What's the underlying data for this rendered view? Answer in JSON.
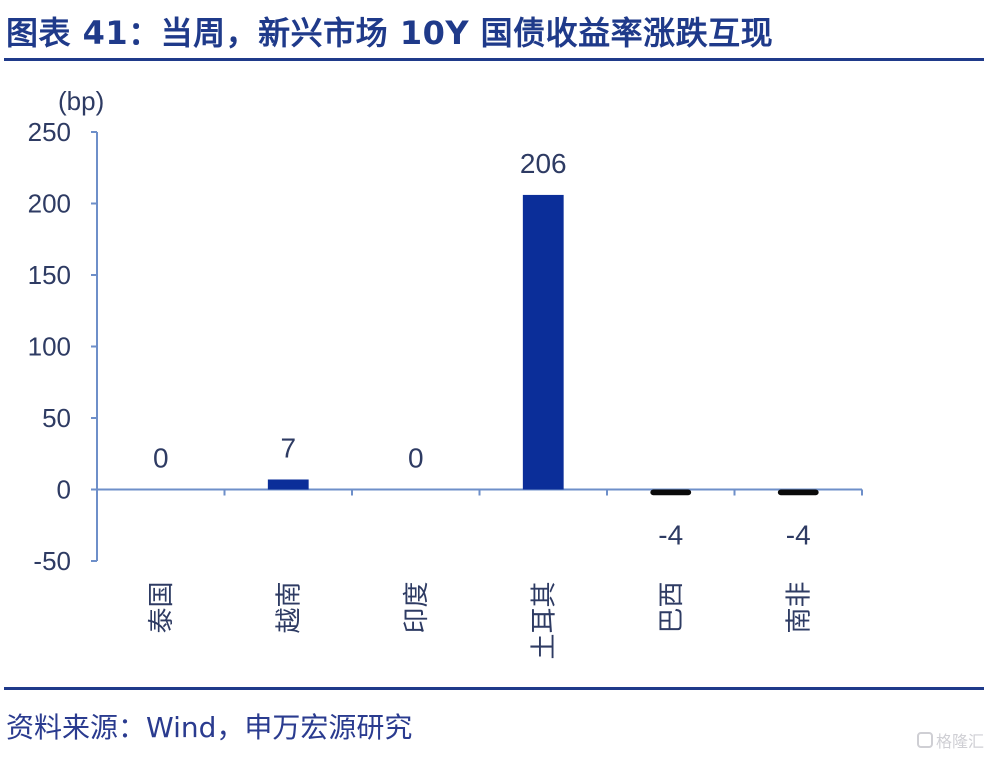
{
  "title": "图表 41：当周，新兴市场 10Y 国债收益率涨跌互现",
  "source": "资料来源：Wind，申万宏源研究",
  "watermark": "格隆汇",
  "colors": {
    "title": "#1f3a8a",
    "positive_bar": "#0b2e99",
    "negative_bar": "#0a0a0a",
    "axis": "#6e8fc9"
  },
  "chart_data": {
    "type": "bar",
    "unit_label": "(bp)",
    "categories": [
      "泰国",
      "越南",
      "印度",
      "土耳其",
      "巴西",
      "南非"
    ],
    "values": [
      0,
      7,
      0,
      206,
      -4,
      -4
    ],
    "data_labels": [
      "0",
      "7",
      "0",
      "206",
      "-4",
      "-4"
    ],
    "ylim": [
      -50,
      250
    ],
    "yticks": [
      250,
      200,
      150,
      100,
      50,
      0,
      -50
    ],
    "grid": false,
    "legend": "none"
  }
}
